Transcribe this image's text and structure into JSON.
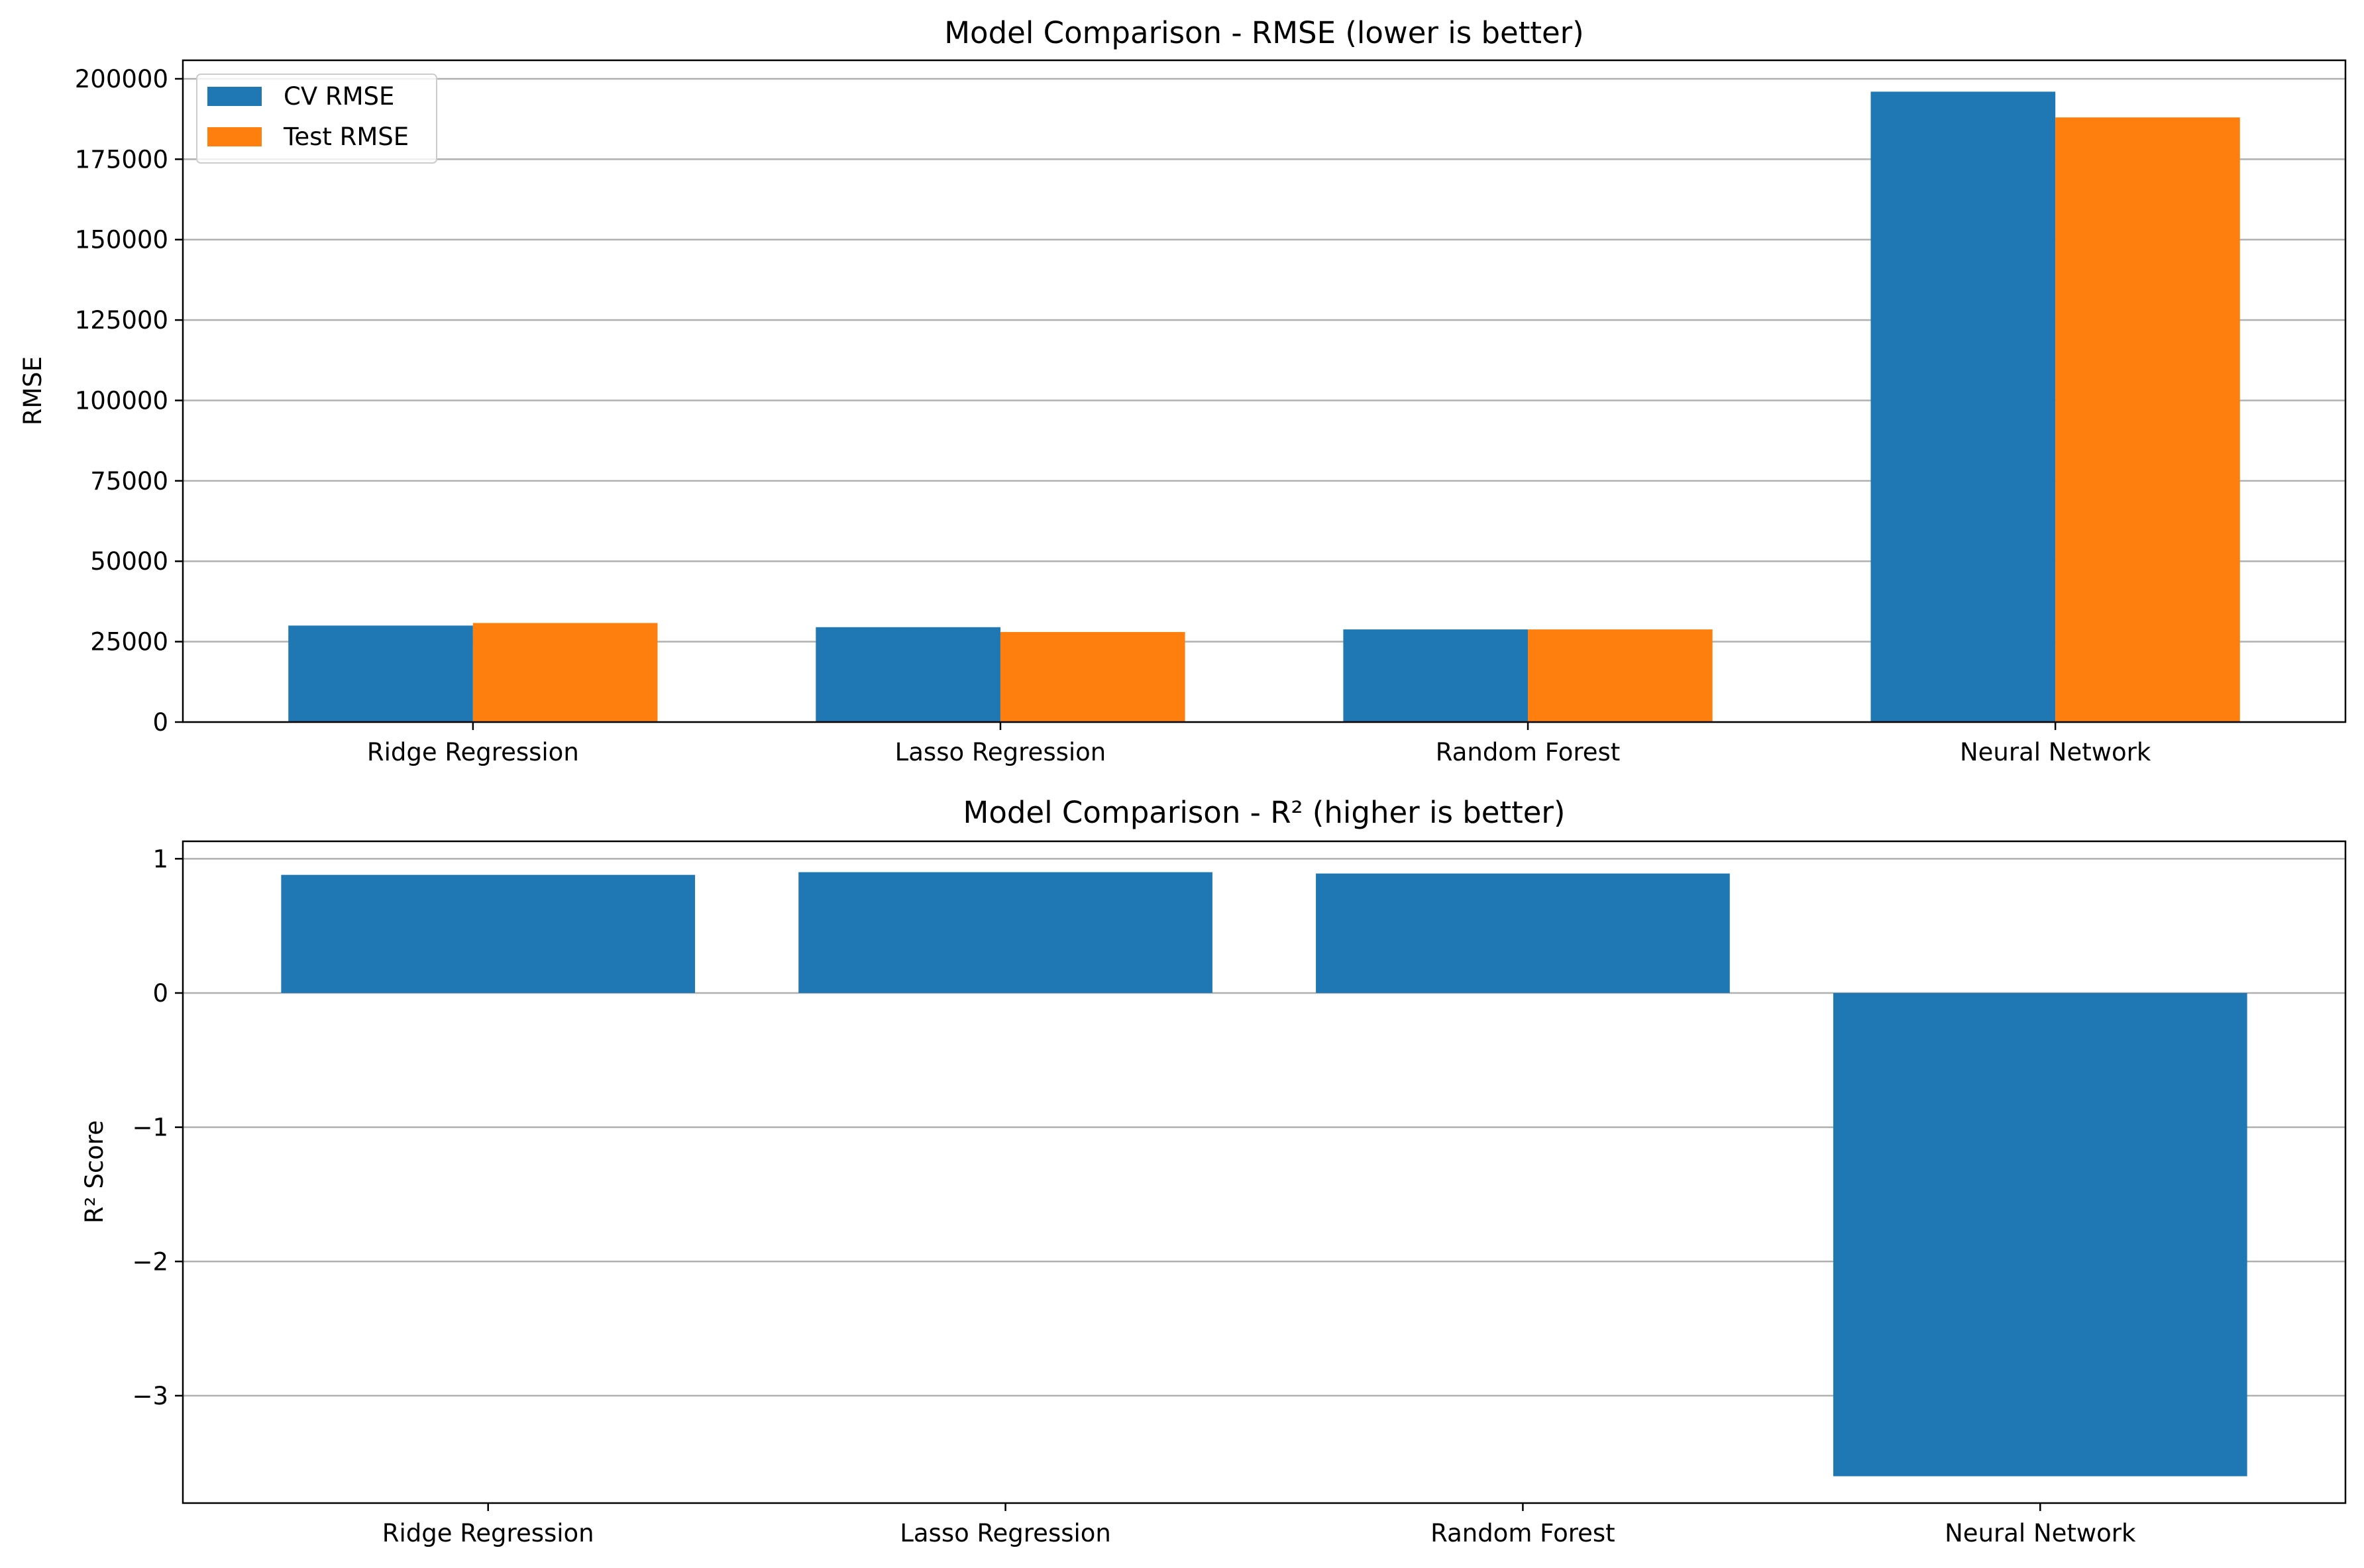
{
  "colors": {
    "cv": "#1f77b4",
    "test": "#ff7f0e",
    "r2": "#1f77b4",
    "grid": "#b0b0b0",
    "axis": "#000000"
  },
  "chart_data": [
    {
      "type": "bar",
      "title": "Model Comparison - RMSE (lower is better)",
      "xlabel": "",
      "ylabel": "RMSE",
      "categories": [
        "Ridge Regression",
        "Lasso Regression",
        "Random Forest",
        "Neural Network"
      ],
      "series": [
        {
          "name": "CV RMSE",
          "color": "#1f77b4",
          "values": [
            30000,
            29500,
            28800,
            196000
          ]
        },
        {
          "name": "Test RMSE",
          "color": "#ff7f0e",
          "values": [
            30800,
            28000,
            28800,
            188000
          ]
        }
      ],
      "ylim": [
        0,
        205760
      ],
      "yticks": [
        0,
        25000,
        50000,
        75000,
        100000,
        125000,
        150000,
        175000,
        200000
      ],
      "ytick_labels": [
        "0",
        "25000",
        "50000",
        "75000",
        "100000",
        "125000",
        "150000",
        "175000",
        "200000"
      ],
      "grid": "y",
      "legend": "upper-left"
    },
    {
      "type": "bar",
      "title": "Model Comparison - R² (higher is better)",
      "xlabel": "",
      "ylabel": "R² Score",
      "categories": [
        "Ridge Regression",
        "Lasso Regression",
        "Random Forest",
        "Neural Network"
      ],
      "values": [
        0.88,
        0.9,
        0.89,
        -3.6
      ],
      "ylim": [
        -3.8,
        1.13
      ],
      "yticks": [
        -3,
        -2,
        -1,
        0,
        1
      ],
      "ytick_labels": [
        "−3",
        "−2",
        "−1",
        "0",
        "1"
      ],
      "grid": "y",
      "legend": "none"
    }
  ]
}
